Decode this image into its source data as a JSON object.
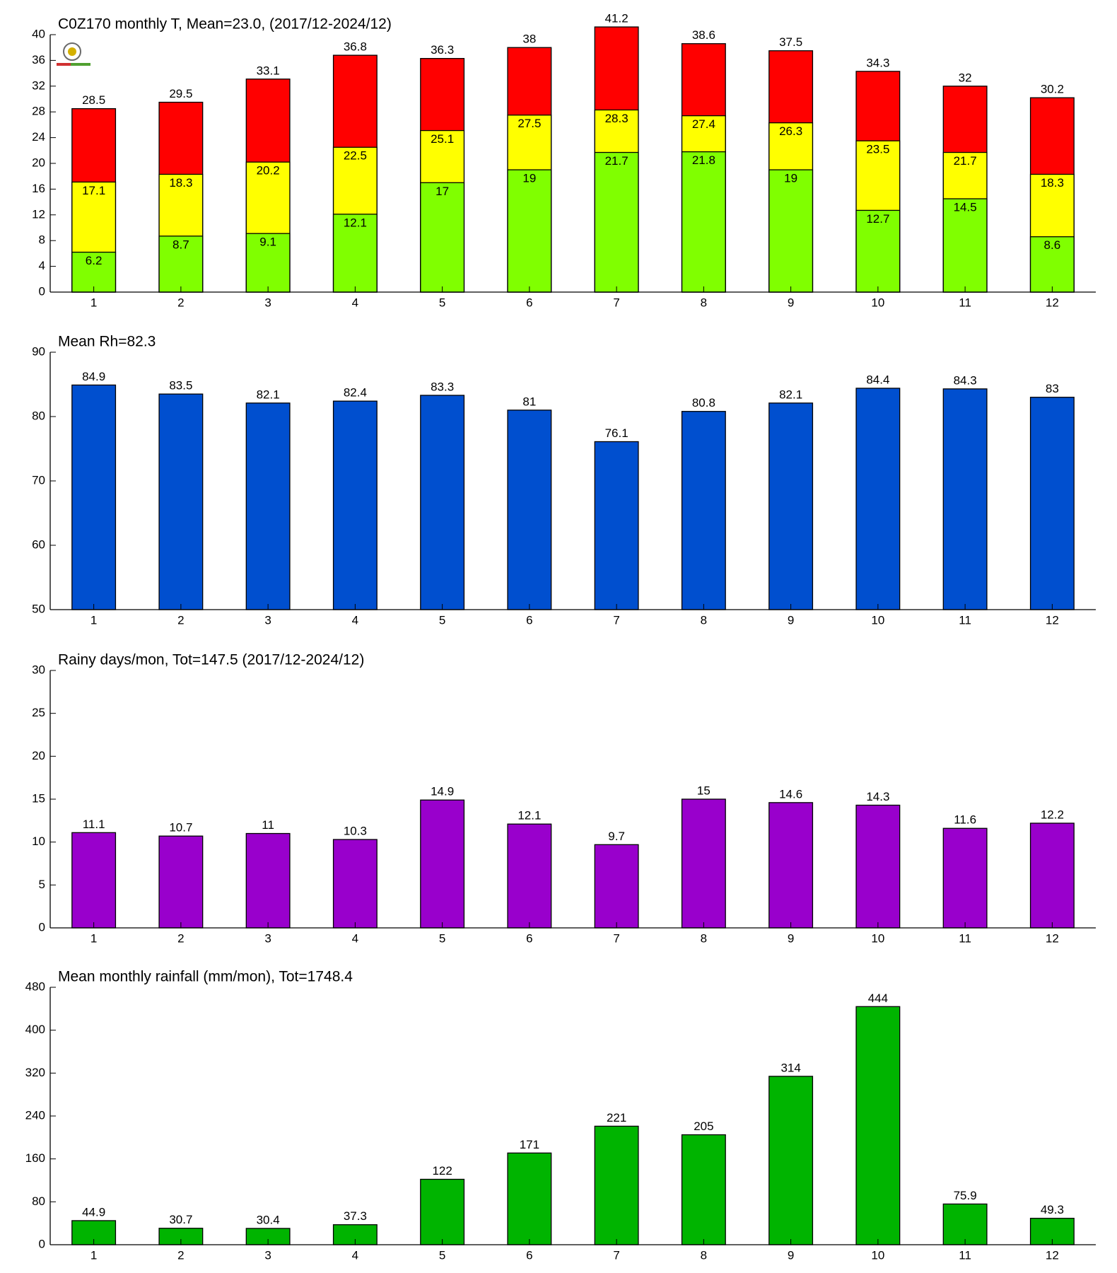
{
  "chart_data": [
    {
      "type": "bar",
      "title": "C0Z170 monthly T, Mean=23.0, (2017/12-2024/12)",
      "categories": [
        "1",
        "2",
        "3",
        "4",
        "5",
        "6",
        "7",
        "8",
        "9",
        "10",
        "11",
        "12"
      ],
      "series": [
        {
          "color": "#ff0000",
          "values": [
            28.5,
            29.5,
            33.1,
            36.8,
            36.3,
            38,
            41.2,
            38.6,
            37.5,
            34.3,
            32,
            30.2
          ]
        },
        {
          "color": "#ffff00",
          "values": [
            17.1,
            18.3,
            20.2,
            22.5,
            25.1,
            27.5,
            28.3,
            27.4,
            26.3,
            23.5,
            21.7,
            18.3
          ]
        },
        {
          "color": "#80ff00",
          "values": [
            6.2,
            8.7,
            9.1,
            12.1,
            17,
            19,
            21.7,
            21.8,
            19,
            12.7,
            14.5,
            8.6
          ]
        }
      ],
      "ylim": [
        0,
        40
      ],
      "yticks": [
        0,
        4,
        8,
        12,
        16,
        20,
        24,
        28,
        32,
        36,
        40
      ]
    },
    {
      "type": "bar",
      "title": "Mean Rh=82.3",
      "categories": [
        "1",
        "2",
        "3",
        "4",
        "5",
        "6",
        "7",
        "8",
        "9",
        "10",
        "11",
        "12"
      ],
      "values": [
        84.9,
        83.5,
        82.1,
        82.4,
        83.3,
        81,
        76.1,
        80.8,
        82.1,
        84.4,
        84.3,
        83
      ],
      "color": "#004fcf",
      "ylim": [
        50,
        90
      ],
      "yticks": [
        50,
        60,
        70,
        80,
        90
      ]
    },
    {
      "type": "bar",
      "title": "Rainy days/mon, Tot=147.5 (2017/12-2024/12)",
      "categories": [
        "1",
        "2",
        "3",
        "4",
        "5",
        "6",
        "7",
        "8",
        "9",
        "10",
        "11",
        "12"
      ],
      "values": [
        11.1,
        10.7,
        11,
        10.3,
        14.9,
        12.1,
        9.7,
        15,
        14.6,
        14.3,
        11.6,
        12.2
      ],
      "color": "#9900cc",
      "ylim": [
        0,
        30
      ],
      "yticks": [
        0,
        5,
        10,
        15,
        20,
        25,
        30
      ]
    },
    {
      "type": "bar",
      "title": "Mean monthly rainfall (mm/mon), Tot=1748.4",
      "categories": [
        "1",
        "2",
        "3",
        "4",
        "5",
        "6",
        "7",
        "8",
        "9",
        "10",
        "11",
        "12"
      ],
      "values": [
        44.9,
        30.7,
        30.4,
        37.3,
        122,
        171,
        221,
        205,
        314,
        444,
        75.9,
        49.3
      ],
      "color": "#00b400",
      "ylim": [
        0,
        480
      ],
      "yticks": [
        0,
        80,
        160,
        240,
        320,
        400,
        480
      ]
    }
  ]
}
